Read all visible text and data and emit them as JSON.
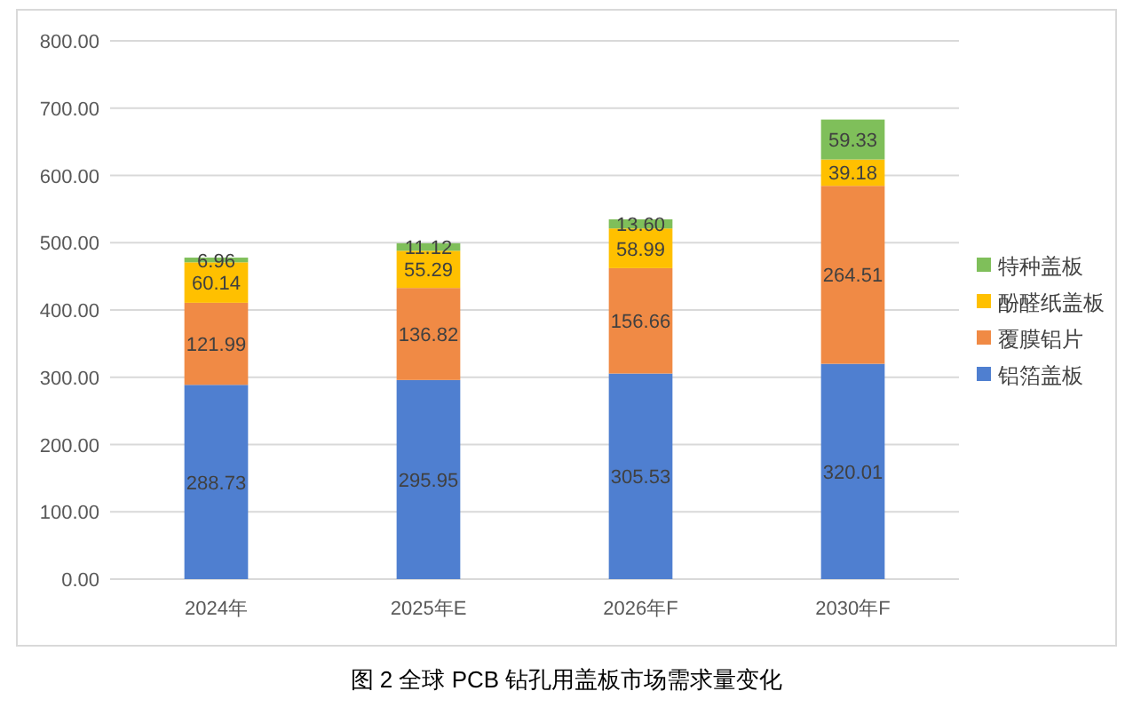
{
  "chart_data": {
    "type": "bar",
    "stacked": true,
    "title": "图 2 全球 PCB 钻孔用盖板市场需求量变化",
    "categories": [
      "2024年",
      "2025年E",
      "2026年F",
      "2030年F"
    ],
    "series": [
      {
        "name": "铝箔盖板",
        "color": "#4f7fd0",
        "values": [
          288.73,
          295.95,
          305.53,
          320.01
        ],
        "value_labels": [
          "288.73",
          "295.95",
          "305.53",
          "320.01"
        ]
      },
      {
        "name": "覆膜铝片",
        "color": "#f08a45",
        "values": [
          121.99,
          136.82,
          156.66,
          264.51
        ],
        "value_labels": [
          "121.99",
          "136.82",
          "156.66",
          "264.51"
        ]
      },
      {
        "name": "酚醛纸盖板",
        "color": "#ffc000",
        "values": [
          60.14,
          55.29,
          58.99,
          39.18
        ],
        "value_labels": [
          "60.14",
          "55.29",
          "58.99",
          "39.18"
        ]
      },
      {
        "name": "特种盖板",
        "color": "#7fbf5a",
        "values": [
          6.96,
          11.12,
          13.6,
          59.33
        ],
        "value_labels": [
          "6.96",
          "11.12",
          "13.60",
          "59.33"
        ]
      }
    ],
    "ylim": [
      0,
      800
    ],
    "yticks": [
      {
        "value": 0,
        "label": "0.00"
      },
      {
        "value": 100,
        "label": "100.00"
      },
      {
        "value": 200,
        "label": "200.00"
      },
      {
        "value": 300,
        "label": "300.00"
      },
      {
        "value": 400,
        "label": "400.00"
      },
      {
        "value": 500,
        "label": "500.00"
      },
      {
        "value": 600,
        "label": "600.00"
      },
      {
        "value": 700,
        "label": "700.00"
      },
      {
        "value": 800,
        "label": "800.00"
      }
    ],
    "grid": "y",
    "legend": "right"
  }
}
